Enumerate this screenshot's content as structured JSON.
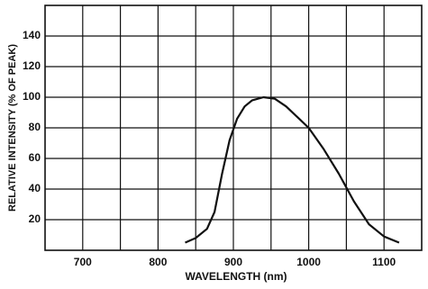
{
  "chart_data": {
    "type": "line",
    "x_label": "WAVELENGTH (nm)",
    "y_label": "RELATIVE INTENSITY (% OF PEAK)",
    "series": [
      {
        "color": "#111111",
        "x": [
          836,
          850,
          865,
          875,
          885,
          895,
          905,
          915,
          925,
          940,
          955,
          970,
          985,
          1000,
          1020,
          1040,
          1060,
          1080,
          1100,
          1120
        ],
        "values": [
          5,
          8,
          14,
          25,
          50,
          72,
          86,
          94,
          98,
          100,
          99,
          94,
          87,
          80,
          66,
          50,
          32,
          17,
          9,
          5
        ]
      }
    ],
    "xlim": [
      650,
      1150
    ],
    "xticks": [
      700,
      800,
      900,
      1000,
      1100
    ],
    "x_minor_grid": [
      750,
      850,
      950,
      1050
    ],
    "ylim": [
      0,
      160
    ],
    "yticks": [
      20,
      40,
      60,
      80,
      100,
      120,
      140
    ],
    "grid": true
  }
}
